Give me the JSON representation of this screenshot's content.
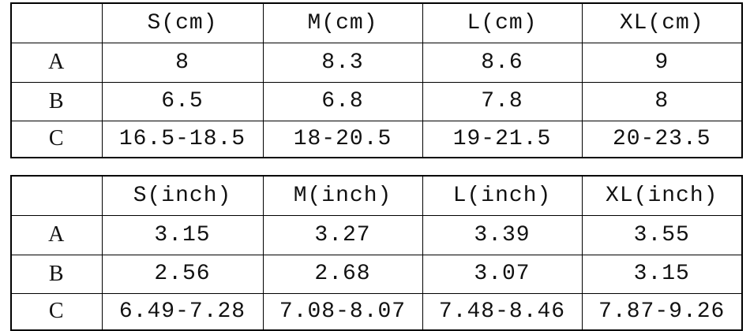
{
  "tables": [
    {
      "header": [
        "S(cm)",
        "M(cm)",
        "L(cm)",
        "XL(cm)"
      ],
      "rows": [
        [
          "A",
          "8",
          "8.3",
          "8.6",
          "9"
        ],
        [
          "B",
          "6.5",
          "6.8",
          "7.8",
          "8"
        ],
        [
          "C",
          "16.5-18.5",
          "18-20.5",
          "19-21.5",
          "20-23.5"
        ]
      ]
    },
    {
      "header": [
        "S(inch)",
        "M(inch)",
        "L(inch)",
        "XL(inch)"
      ],
      "rows": [
        [
          "A",
          "3.15",
          "3.27",
          "3.39",
          "3.55"
        ],
        [
          "B",
          "2.56",
          "2.68",
          "3.07",
          "3.15"
        ],
        [
          "C",
          "6.49-7.28",
          "7.08-8.07",
          "7.48-8.46",
          "7.87-9.26"
        ]
      ]
    }
  ]
}
